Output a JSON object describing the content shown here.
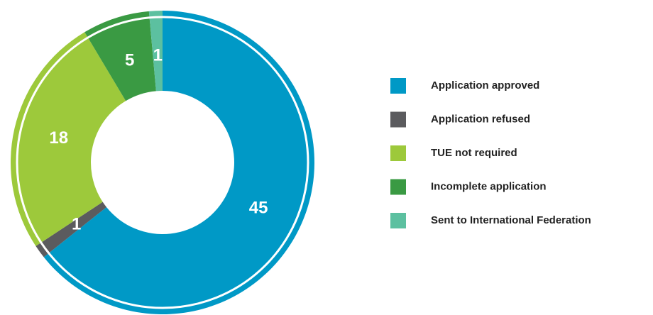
{
  "chart_data": {
    "type": "donut",
    "categories": [
      "Application approved",
      "Application refused",
      "TUE not required",
      "Incomplete application",
      "Sent to International Federation"
    ],
    "values": [
      45,
      1,
      18,
      5,
      1
    ],
    "colors": [
      "#0099c6",
      "#5b5b5e",
      "#9dc93b",
      "#3a9a43",
      "#5cc0a0"
    ],
    "legend": "right"
  }
}
